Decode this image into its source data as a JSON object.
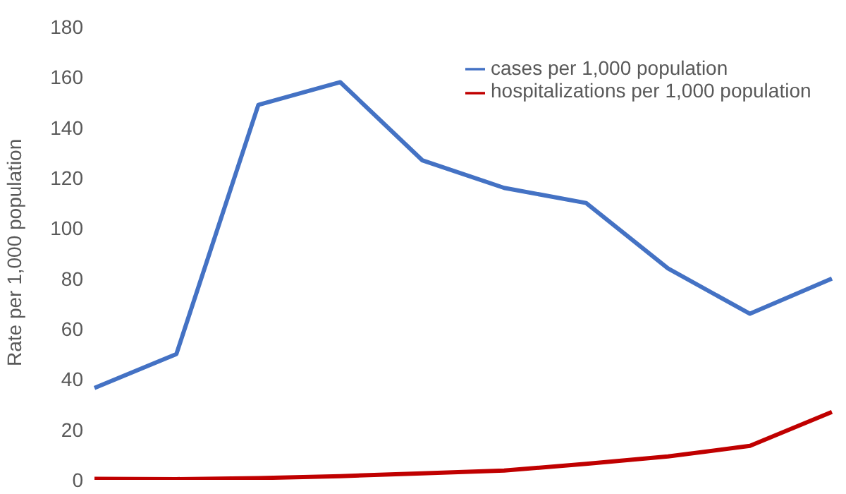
{
  "chart_data": {
    "type": "line",
    "ylabel": "Rate per 1,000 population",
    "categories": [
      null,
      null,
      null,
      null,
      null,
      null,
      null,
      null,
      null,
      null
    ],
    "series": [
      {
        "name": "cases per 1,000 population",
        "color": "#4472c4",
        "values": [
          36.5,
          50,
          149,
          158,
          127,
          116,
          110,
          84,
          66,
          80
        ]
      },
      {
        "name": "hospitalizations per 1,000 population",
        "color": "#c00000",
        "values": [
          0.4,
          0.3,
          0.7,
          1.5,
          2.6,
          3.7,
          6.4,
          9.3,
          13.5,
          27
        ]
      }
    ],
    "ylim": [
      0,
      180
    ],
    "yticks": [
      0,
      20,
      40,
      60,
      80,
      100,
      120,
      140,
      160,
      180
    ],
    "grid": false,
    "legend": "top right",
    "tick_labels": "y",
    "marker": "none",
    "line_style": "solid"
  }
}
